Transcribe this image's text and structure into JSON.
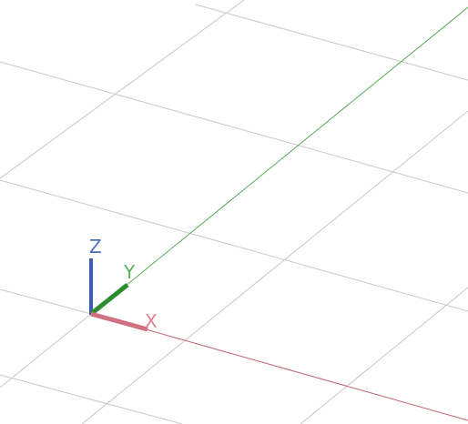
{
  "ucs_icon": {
    "z_label": "Z",
    "y_label": "Y",
    "x_label": "X"
  }
}
